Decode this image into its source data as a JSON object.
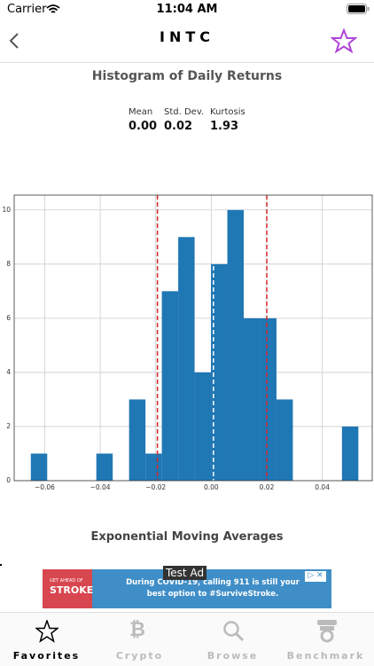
{
  "status_bar": {
    "carrier": "Carrier",
    "time": "11:04 AM"
  },
  "nav": {
    "title": "INTC"
  },
  "chart_data": {
    "type": "histogram",
    "title": "Histogram of Daily Returns",
    "bins": [
      -0.065,
      -0.0591,
      -0.0532,
      -0.0473,
      -0.0414,
      -0.0355,
      -0.0296,
      -0.0237,
      -0.0178,
      -0.0119,
      -0.006,
      -0.0001,
      0.0058,
      0.0117,
      0.0176,
      0.0235,
      0.0294,
      0.0353,
      0.0412,
      0.0471,
      0.053
    ],
    "counts": [
      1,
      0,
      0,
      0,
      1,
      0,
      3,
      1,
      7,
      9,
      4,
      8,
      10,
      6,
      6,
      3,
      0,
      0,
      0,
      2
    ],
    "color": "#1f77b4",
    "xlim": [
      -0.071,
      0.058
    ],
    "ylim": [
      0,
      10.55
    ],
    "xticks": [
      {
        "value": -0.06,
        "label": "−0.06"
      },
      {
        "value": -0.04,
        "label": "−0.04"
      },
      {
        "value": -0.02,
        "label": "−0.02"
      },
      {
        "value": 0,
        "label": "0.00"
      },
      0.02,
      0.04
    ],
    "yticks": [
      0,
      2,
      4,
      6,
      8,
      10
    ],
    "grid": true,
    "vlines": [
      {
        "value": -0.0194,
        "color": "#d62728"
      },
      {
        "value": 0.0008,
        "color": "#ffffff"
      },
      {
        "value": 0.02,
        "color": "#d62728"
      }
    ]
  },
  "stats": [
    {
      "label": "Mean",
      "value": "0.00"
    },
    {
      "label": "Std. Dev.",
      "value": "0.02"
    },
    {
      "label": "Kurtosis",
      "value": "1.93"
    }
  ],
  "section_title": "Exponential Moving Averages",
  "ad": {
    "badge": "Test Ad",
    "brand_top": "GET AHEAD OF",
    "brand": "STROKE",
    "text": "During COVID-19, calling 911 is still your best option to #SurviveStroke."
  },
  "tabs": [
    "Favorites",
    "Crypto",
    "Browse",
    "Benchmark"
  ]
}
